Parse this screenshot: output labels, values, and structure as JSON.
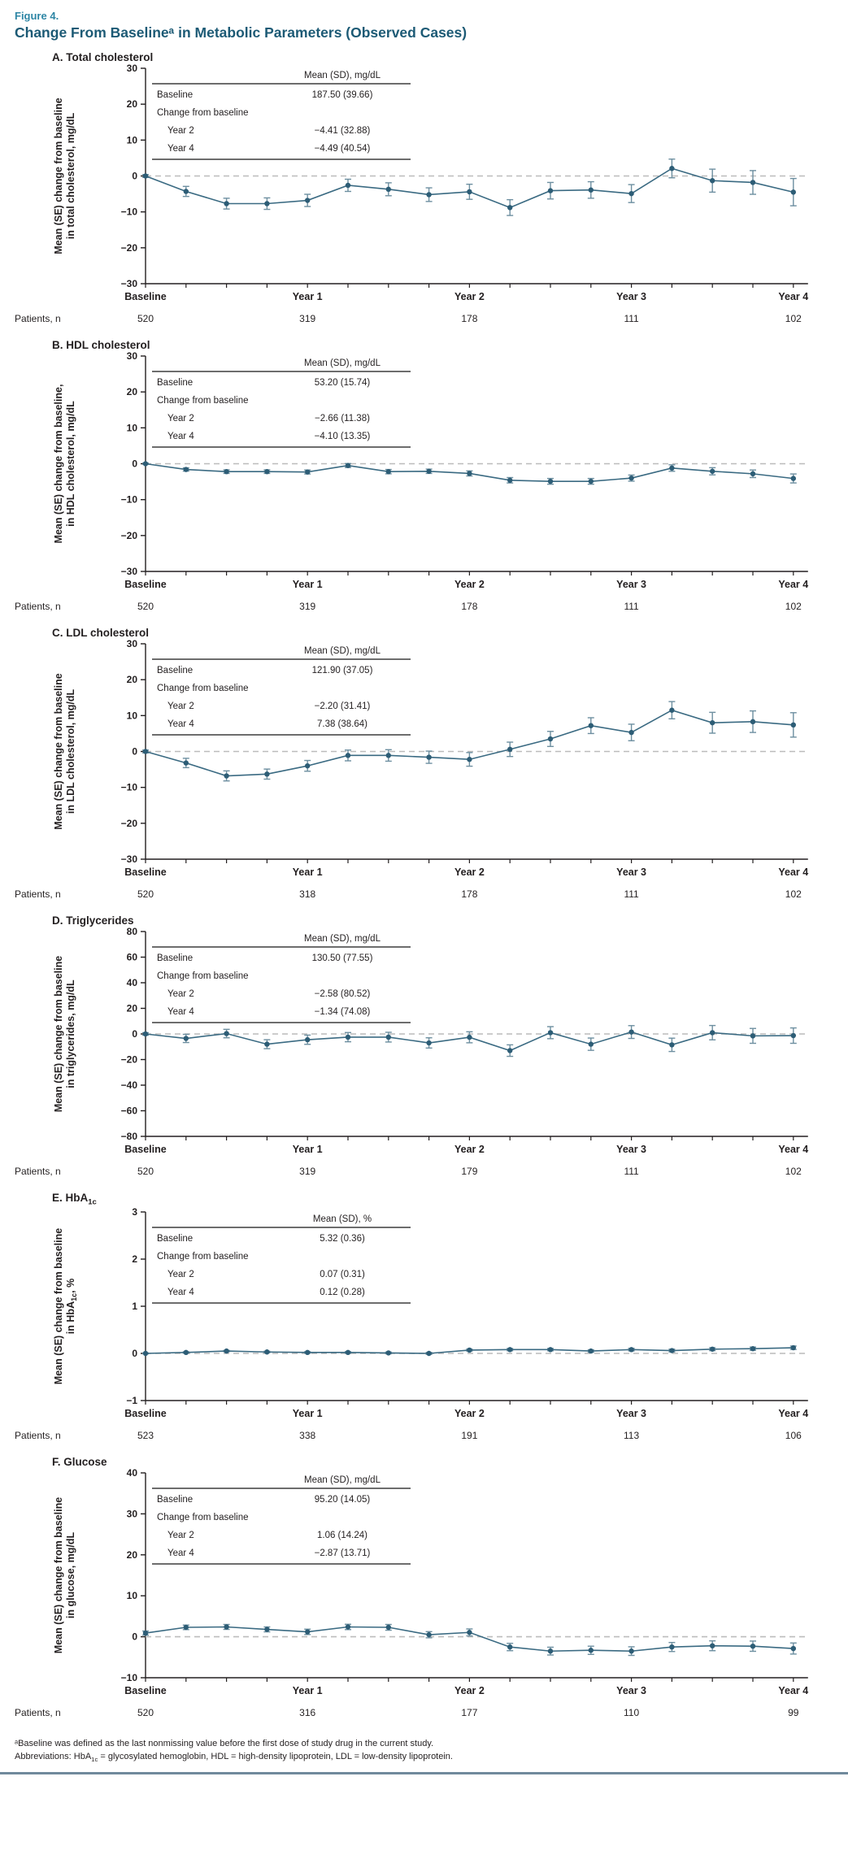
{
  "figure": {
    "label": "Figure 4.",
    "title": "Change From Baselineᵃ in Metabolic Parameters (Observed Cases)"
  },
  "footnotes": {
    "baseline": "ᵃBaseline was defined as the last nonmissing value before the first dose of study drug in the current study.",
    "abbreviations": "Abbreviations: HbA1c = glycosylated hemoglobin, HDL = high-density lipoprotein, LDL = low-density lipoprotein."
  },
  "axis": {
    "xtick_labels": [
      "Baseline",
      "Year 1",
      "Year 2",
      "Year 3",
      "Year 4"
    ],
    "points_per_series": 17,
    "x_note": "quarterly visits from baseline through year 4"
  },
  "colors": {
    "accent_teal": "#2e86a5",
    "title_teal": "#1c5a75",
    "line": "#3a6a82",
    "marker": "#2d5d76",
    "error_bar": "#6d8fa0",
    "zero_dash": "#bcbcbc",
    "axis": "#231f20",
    "bottom_rule": "#70899c"
  },
  "chart_data": [
    {
      "id": "A",
      "type": "line",
      "title": "A. Total cholesterol",
      "ylabel_lines": [
        "Mean (SE) change from baseline",
        "in total cholesterol, mg/dL"
      ],
      "ylim": [
        -30,
        30
      ],
      "yticks": [
        30,
        20,
        10,
        0,
        -10,
        -20,
        -30
      ],
      "xtick_labels": [
        "Baseline",
        "Year 1",
        "Year 2",
        "Year 3",
        "Year 4"
      ],
      "values": [
        0,
        -4.3,
        -7.7,
        -7.7,
        -6.8,
        -2.6,
        -3.7,
        -5.2,
        -4.4,
        -8.8,
        -4.1,
        -3.9,
        -4.9,
        2.1,
        -1.3,
        -1.8,
        -4.5
      ],
      "se": [
        0.4,
        1.4,
        1.5,
        1.6,
        1.7,
        1.7,
        1.8,
        1.9,
        2.1,
        2.2,
        2.3,
        2.3,
        2.5,
        2.6,
        3.2,
        3.3,
        3.8
      ],
      "inset_table": {
        "header": "Mean (SD), mg/dL",
        "rows": [
          {
            "label": "Baseline",
            "value": "187.50 (39.66)",
            "indent": false
          },
          {
            "label": "Change from baseline",
            "value": "",
            "indent": false
          },
          {
            "label": "Year 2",
            "value": "−4.41 (32.88)",
            "indent": true
          },
          {
            "label": "Year 4",
            "value": "−4.49 (40.54)",
            "indent": true
          }
        ]
      },
      "patients_label": "Patients, n",
      "patients_n": [
        "520",
        "319",
        "178",
        "111",
        "102"
      ]
    },
    {
      "id": "B",
      "type": "line",
      "title": "B. HDL cholesterol",
      "ylabel_lines": [
        "Mean (SE) change from baseline,",
        "in HDL cholesterol, mg/dL"
      ],
      "ylim": [
        -30,
        30
      ],
      "yticks": [
        30,
        20,
        10,
        0,
        -10,
        -20,
        -30
      ],
      "xtick_labels": [
        "Baseline",
        "Year 1",
        "Year 2",
        "Year 3",
        "Year 4"
      ],
      "values": [
        0,
        -1.6,
        -2.2,
        -2.2,
        -2.3,
        -0.5,
        -2.2,
        -2.1,
        -2.7,
        -4.6,
        -4.9,
        -4.9,
        -4.0,
        -1.2,
        -2.1,
        -2.8,
        -4.1
      ],
      "se": [
        0.2,
        0.45,
        0.5,
        0.5,
        0.55,
        0.55,
        0.6,
        0.6,
        0.7,
        0.75,
        0.8,
        0.8,
        0.85,
        0.9,
        1.0,
        1.05,
        1.25
      ],
      "inset_table": {
        "header": "Mean (SD), mg/dL",
        "rows": [
          {
            "label": "Baseline",
            "value": "53.20 (15.74)",
            "indent": false
          },
          {
            "label": "Change from baseline",
            "value": "",
            "indent": false
          },
          {
            "label": "Year 2",
            "value": "−2.66 (11.38)",
            "indent": true
          },
          {
            "label": "Year 4",
            "value": "−4.10 (13.35)",
            "indent": true
          }
        ]
      },
      "patients_label": "Patients, n",
      "patients_n": [
        "520",
        "319",
        "178",
        "111",
        "102"
      ]
    },
    {
      "id": "C",
      "type": "line",
      "title": "C. LDL cholesterol",
      "ylabel_lines": [
        "Mean (SE) change from baseline",
        "in LDL cholesterol, mg/dL"
      ],
      "ylim": [
        -30,
        30
      ],
      "yticks": [
        30,
        20,
        10,
        0,
        -10,
        -20,
        -30
      ],
      "xtick_labels": [
        "Baseline",
        "Year 1",
        "Year 2",
        "Year 3",
        "Year 4"
      ],
      "values": [
        0,
        -3.2,
        -6.8,
        -6.3,
        -4.0,
        -1.1,
        -1.1,
        -1.6,
        -2.2,
        0.6,
        3.5,
        7.2,
        5.3,
        11.5,
        8.0,
        8.3,
        7.4
      ],
      "se": [
        0.4,
        1.3,
        1.4,
        1.4,
        1.5,
        1.5,
        1.6,
        1.7,
        1.9,
        2.0,
        2.1,
        2.2,
        2.3,
        2.4,
        2.9,
        3.0,
        3.4
      ],
      "inset_table": {
        "header": "Mean (SD), mg/dL",
        "rows": [
          {
            "label": "Baseline",
            "value": "121.90 (37.05)",
            "indent": false
          },
          {
            "label": "Change from baseline",
            "value": "",
            "indent": false
          },
          {
            "label": "Year 2",
            "value": "−2.20 (31.41)",
            "indent": true
          },
          {
            "label": "Year 4",
            "value": "7.38 (38.64)",
            "indent": true
          }
        ]
      },
      "patients_label": "Patients, n",
      "patients_n": [
        "520",
        "318",
        "178",
        "111",
        "102"
      ]
    },
    {
      "id": "D",
      "type": "line",
      "title": "D. Triglycerides",
      "ylabel_lines": [
        "Mean (SE) change from baseline",
        "in triglycerides, mg/dL"
      ],
      "ylim": [
        -80,
        80
      ],
      "yticks": [
        80,
        60,
        40,
        20,
        0,
        -20,
        -40,
        -60,
        -80
      ],
      "xtick_labels": [
        "Baseline",
        "Year 1",
        "Year 2",
        "Year 3",
        "Year 4"
      ],
      "values": [
        0,
        -3.5,
        0.3,
        -8.0,
        -4.5,
        -2.5,
        -2.5,
        -7.0,
        -2.6,
        -13.0,
        1.0,
        -8.0,
        1.5,
        -8.5,
        1.0,
        -1.5,
        -1.3
      ],
      "se": [
        1.0,
        3.2,
        3.3,
        3.5,
        3.6,
        3.6,
        3.8,
        4.0,
        4.3,
        4.5,
        4.7,
        4.8,
        5.0,
        5.2,
        5.6,
        5.8,
        6.0
      ],
      "inset_table": {
        "header": "Mean (SD), mg/dL",
        "rows": [
          {
            "label": "Baseline",
            "value": "130.50 (77.55)",
            "indent": false
          },
          {
            "label": "Change from baseline",
            "value": "",
            "indent": false
          },
          {
            "label": "Year 2",
            "value": "−2.58 (80.52)",
            "indent": true
          },
          {
            "label": "Year 4",
            "value": "−1.34 (74.08)",
            "indent": true
          }
        ]
      },
      "patients_label": "Patients, n",
      "patients_n": [
        "520",
        "319",
        "179",
        "111",
        "102"
      ]
    },
    {
      "id": "E",
      "type": "line",
      "title": "E. HbA1c",
      "ylabel_lines": [
        "Mean (SE) change from baseline",
        "in HbA1c, %"
      ],
      "ylim": [
        -1,
        3
      ],
      "yticks": [
        3,
        2,
        1,
        0,
        -1
      ],
      "xtick_labels": [
        "Baseline",
        "Year 1",
        "Year 2",
        "Year 3",
        "Year 4"
      ],
      "values": [
        0,
        0.02,
        0.05,
        0.03,
        0.02,
        0.02,
        0.01,
        0.0,
        0.07,
        0.08,
        0.08,
        0.05,
        0.08,
        0.06,
        0.09,
        0.1,
        0.12
      ],
      "se": [
        0.01,
        0.015,
        0.015,
        0.016,
        0.017,
        0.017,
        0.018,
        0.02,
        0.022,
        0.024,
        0.025,
        0.026,
        0.028,
        0.03,
        0.032,
        0.034,
        0.036
      ],
      "inset_table": {
        "header": "Mean (SD), %",
        "rows": [
          {
            "label": "Baseline",
            "value": "5.32 (0.36)",
            "indent": false
          },
          {
            "label": "Change from baseline",
            "value": "",
            "indent": false
          },
          {
            "label": "Year 2",
            "value": "0.07 (0.31)",
            "indent": true
          },
          {
            "label": "Year 4",
            "value": "0.12 (0.28)",
            "indent": true
          }
        ]
      },
      "patients_label": "Patients, n",
      "patients_n": [
        "523",
        "338",
        "191",
        "113",
        "106"
      ]
    },
    {
      "id": "F",
      "type": "line",
      "title": "F. Glucose",
      "ylabel_lines": [
        "Mean (SE) change from baseline",
        "in glucose, mg/dL"
      ],
      "ylim": [
        -10,
        40
      ],
      "yticks": [
        40,
        30,
        20,
        10,
        0,
        -10
      ],
      "xtick_labels": [
        "Baseline",
        "Year 1",
        "Year 2",
        "Year 3",
        "Year 4"
      ],
      "values": [
        0.9,
        2.3,
        2.4,
        1.8,
        1.2,
        2.4,
        2.3,
        0.5,
        1.06,
        -2.5,
        -3.5,
        -3.3,
        -3.5,
        -2.5,
        -2.2,
        -2.3,
        -2.87
      ],
      "se": [
        0.5,
        0.55,
        0.6,
        0.6,
        0.65,
        0.65,
        0.7,
        0.75,
        0.85,
        0.9,
        0.95,
        1.0,
        1.05,
        1.1,
        1.2,
        1.25,
        1.35
      ],
      "inset_table": {
        "header": "Mean (SD), mg/dL",
        "rows": [
          {
            "label": "Baseline",
            "value": "95.20 (14.05)",
            "indent": false
          },
          {
            "label": "Change from baseline",
            "value": "",
            "indent": false
          },
          {
            "label": "Year 2",
            "value": "1.06 (14.24)",
            "indent": true
          },
          {
            "label": "Year 4",
            "value": "−2.87 (13.71)",
            "indent": true
          }
        ]
      },
      "patients_label": "Patients, n",
      "patients_n": [
        "520",
        "316",
        "177",
        "110",
        "99"
      ]
    }
  ]
}
